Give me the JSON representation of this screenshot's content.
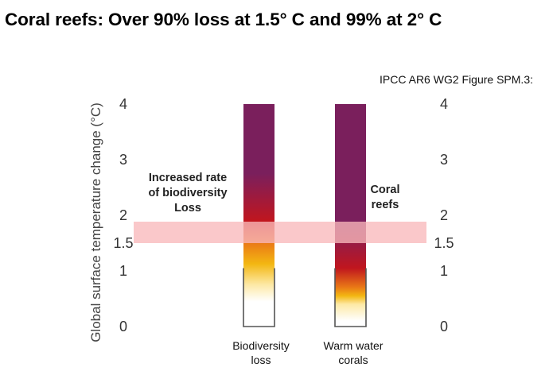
{
  "title": "Coral reefs: Over 90% loss at 1.5° C and 99% at 2° C",
  "source": "IPCC AR6 WG2 Figure SPM.3:",
  "colors": {
    "band": "#f9b8bb",
    "very_high": "#7a1f5c",
    "high": "#c0161e",
    "moderate": "#f3b712",
    "undetectable": "#ffffff"
  },
  "chart_data": {
    "type": "bar",
    "title": "Coral reefs: Over 90% loss at 1.5° C and 99% at 2° C",
    "ylabel": "Global surface temperature change (°C)",
    "ylim": [
      0,
      4
    ],
    "yticks": [
      "0",
      "1",
      "1.5",
      "2",
      "3",
      "4"
    ],
    "highlight_band": [
      1.5,
      2
    ],
    "categories": [
      "Biodiversity loss",
      "Warm water corals"
    ],
    "category_lines": [
      [
        "Biodiversity",
        "loss"
      ],
      [
        "Warm water",
        "corals"
      ]
    ],
    "series": [
      {
        "category": "Biodiversity loss",
        "top": 4,
        "transitions": {
          "undetectable_to_moderate": 0.75,
          "moderate_to_high": 1.5,
          "high_to_very_high": 2.3
        }
      },
      {
        "category": "Warm water corals",
        "top": 4,
        "transitions": {
          "undetectable_to_moderate": 0.4,
          "moderate_to_high": 0.7,
          "high_to_very_high": 1.4
        }
      }
    ],
    "annotations": [
      {
        "target": "Biodiversity loss",
        "lines": [
          "Increased rate",
          "of biodiversity",
          "Loss"
        ]
      },
      {
        "target": "Warm water corals",
        "lines": [
          "Coral",
          "reefs"
        ]
      }
    ]
  }
}
